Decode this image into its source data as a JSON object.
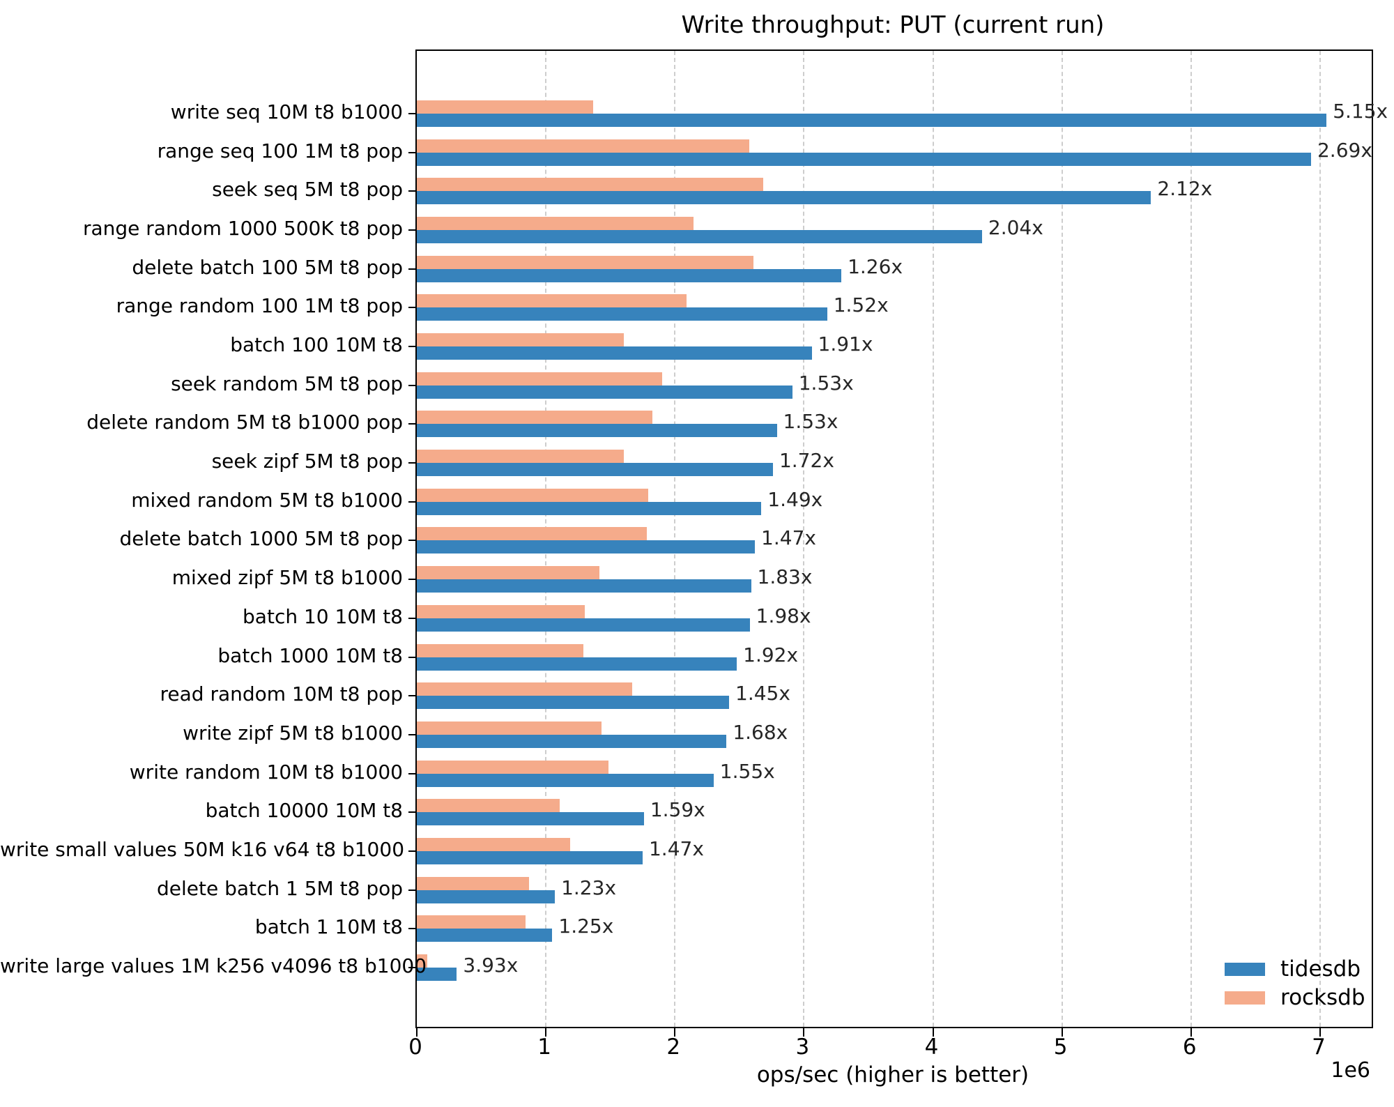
{
  "title": "Write throughput: PUT (current run)",
  "xlabel": "ops/sec (higher is better)",
  "axis_offset_text": "1e6",
  "colors": {
    "tidesdb": "#3783bc",
    "rocksdb": "#f5ab8b",
    "grid": "#cdcdcd",
    "annotation": "#262626"
  },
  "legend": {
    "position": "lower right",
    "items": [
      {
        "label": "tidesdb",
        "color": "#3783bc"
      },
      {
        "label": "rocksdb",
        "color": "#f5ab8b"
      }
    ]
  },
  "chart_data": {
    "type": "bar",
    "orientation": "horizontal",
    "title": "Write throughput: PUT (current run)",
    "xlabel": "ops/sec (higher is better)",
    "x_unit": "1e6",
    "xlim": [
      0,
      7400000
    ],
    "xticks": [
      0,
      1,
      2,
      3,
      4,
      5,
      6,
      7
    ],
    "grid": "vertical-dashed",
    "legend_position": "lower right",
    "categories": [
      "write seq 10M t8 b1000",
      "range seq 100 1M t8 pop",
      "seek seq 5M t8 pop",
      "range random 1000 500K t8 pop",
      "delete batch 100 5M t8 pop",
      "range random 100 1M t8 pop",
      "batch 100 10M t8",
      "seek random 5M t8 pop",
      "delete random 5M t8 b1000 pop",
      "seek zipf 5M t8 pop",
      "mixed random 5M t8 b1000",
      "delete batch 1000 5M t8 pop",
      "mixed zipf 5M t8 b1000",
      "batch 10 10M t8",
      "batch 1000 10M t8",
      "read random 10M t8 pop",
      "write zipf 5M t8 b1000",
      "write random 10M t8 b1000",
      "batch 10000 10M t8",
      "write small values 50M k16 v64 t8 b1000",
      "delete batch 1 5M t8 pop",
      "batch 1 10M t8",
      "write large values 1M k256 v4096 t8 b1000"
    ],
    "series": [
      {
        "name": "tidesdb",
        "color": "#3783bc",
        "values": [
          7050000,
          6930000,
          5690000,
          4380000,
          3290000,
          3180000,
          3060000,
          2910000,
          2790000,
          2760000,
          2670000,
          2620000,
          2590000,
          2580000,
          2480000,
          2420000,
          2400000,
          2300000,
          1760000,
          1750000,
          1070000,
          1050000,
          310000
        ]
      },
      {
        "name": "rocksdb",
        "color": "#f5ab8b",
        "values": [
          1369000,
          2576000,
          2684000,
          2147000,
          2611000,
          2092000,
          1602000,
          1902000,
          1824000,
          1605000,
          1792000,
          1782000,
          1415000,
          1303000,
          1292000,
          1669000,
          1429000,
          1484000,
          1107000,
          1190000,
          870000,
          840000,
          79000
        ]
      }
    ],
    "speedup_labels": [
      "5.15x",
      "2.69x",
      "2.12x",
      "2.04x",
      "1.26x",
      "1.52x",
      "1.91x",
      "1.53x",
      "1.53x",
      "1.72x",
      "1.49x",
      "1.47x",
      "1.83x",
      "1.98x",
      "1.92x",
      "1.45x",
      "1.68x",
      "1.55x",
      "1.59x",
      "1.47x",
      "1.23x",
      "1.25x",
      "3.93x"
    ]
  }
}
